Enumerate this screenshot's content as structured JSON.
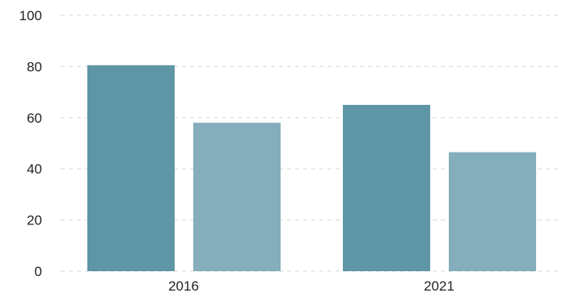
{
  "chart_data": {
    "type": "bar",
    "categories": [
      "2016",
      "2021"
    ],
    "series": [
      {
        "values": [
          80.5,
          65
        ],
        "color": "#5f96a6"
      },
      {
        "values": [
          58,
          46.5
        ],
        "color": "#84aebb"
      }
    ],
    "title": "",
    "xlabel": "",
    "ylabel": "",
    "ylim": [
      0,
      100
    ],
    "yticks": [
      0,
      20,
      40,
      60,
      80,
      100
    ],
    "grid": true,
    "legend": "none"
  }
}
